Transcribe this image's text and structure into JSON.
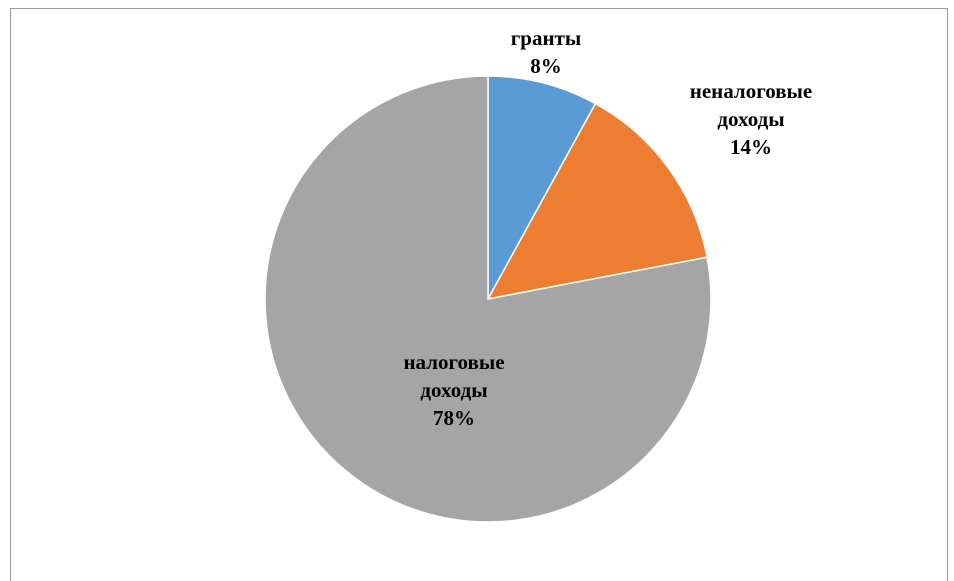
{
  "chart_data": {
    "type": "pie",
    "title": "",
    "categories": [
      "гранты",
      "неналоговые доходы",
      "налоговые доходы"
    ],
    "values": [
      8,
      14,
      78
    ],
    "value_labels": [
      "8%",
      "14%",
      "78%"
    ],
    "colors": [
      "#5B9BD5",
      "#ED7D31",
      "#A5A5A5"
    ],
    "label_lines": [
      [
        "гранты"
      ],
      [
        "неналоговые",
        "доходы"
      ],
      [
        "налоговые",
        "доходы"
      ]
    ],
    "start_angle_deg": 0,
    "direction": "clockwise",
    "legend": "none"
  }
}
